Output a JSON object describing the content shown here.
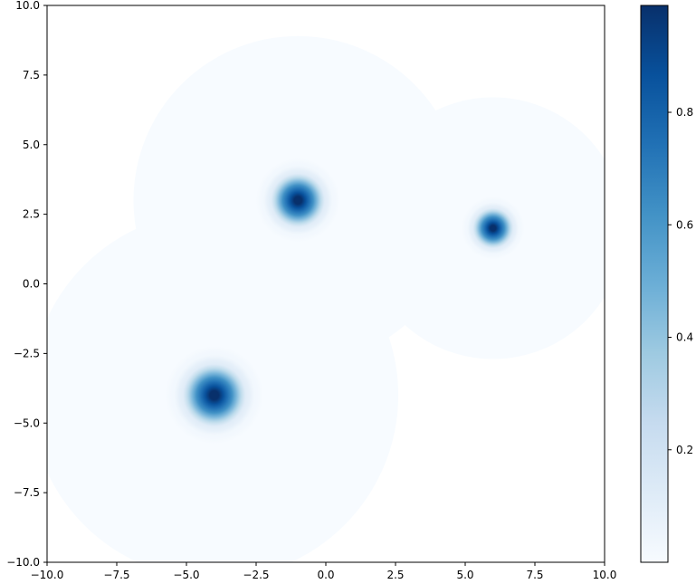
{
  "chart_data": {
    "type": "heatmap",
    "title": "",
    "xlabel": "",
    "ylabel": "",
    "xlim": [
      -10,
      10
    ],
    "ylim": [
      -10,
      10
    ],
    "x_ticks": [
      -10,
      -7.5,
      -5,
      -2.5,
      0,
      2.5,
      5,
      7.5,
      10
    ],
    "y_ticks": [
      -10,
      -7.5,
      -5,
      -2.5,
      0,
      2.5,
      5,
      7.5,
      10
    ],
    "x_tick_labels": [
      "−10.0",
      "−7.5",
      "−5.0",
      "−2.5",
      "0.0",
      "2.5",
      "5.0",
      "7.5",
      "10.0"
    ],
    "y_tick_labels": [
      "−10.0",
      "−7.5",
      "−5.0",
      "−2.5",
      "0.0",
      "2.5",
      "5.0",
      "7.5",
      "10.0"
    ],
    "grid": false,
    "colormap": "Blues",
    "colors": {
      "low": "#f7fbff",
      "mid": "#6baed6",
      "high": "#08306b"
    },
    "peaks": [
      {
        "x": -1,
        "y": 3,
        "peak": 1.0,
        "sigma": 0.6,
        "support_radius": 5.9
      },
      {
        "x": 6,
        "y": 2,
        "peak": 1.0,
        "sigma": 0.45,
        "support_radius": 4.7
      },
      {
        "x": -4,
        "y": -4,
        "peak": 1.0,
        "sigma": 0.7,
        "support_radius": 6.6
      }
    ],
    "colorbar": {
      "min": 0,
      "max": 0.99,
      "ticks": [
        0.2,
        0.4,
        0.6,
        0.8
      ],
      "tick_labels": [
        "0.2",
        "0.4",
        "0.6",
        "0.8"
      ]
    }
  }
}
